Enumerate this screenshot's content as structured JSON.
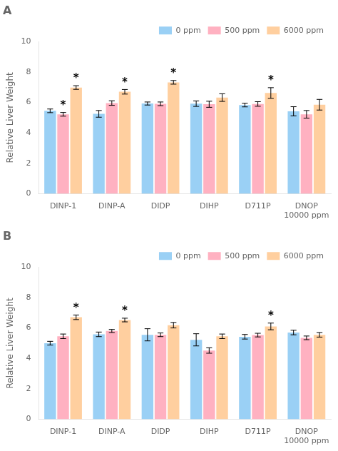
{
  "chart_data": [
    {
      "type": "bar",
      "title": "A",
      "categories": [
        "DINP-1",
        "DINP-A",
        "DIDP",
        "DIHP",
        "D711P",
        "DNOP\n10000 ppm"
      ],
      "series": [
        {
          "name": "0 ppm",
          "values": [
            5.45,
            5.25,
            5.93,
            5.92,
            5.83,
            5.42
          ],
          "errors": [
            0.12,
            0.22,
            0.1,
            0.18,
            0.12,
            0.3
          ]
        },
        {
          "name": "500 ppm",
          "values": [
            5.22,
            5.96,
            5.91,
            5.88,
            5.9,
            5.22
          ],
          "errors": [
            0.12,
            0.15,
            0.12,
            0.2,
            0.15,
            0.25
          ]
        },
        {
          "name": "6000 ppm",
          "values": [
            6.98,
            6.7,
            7.32,
            6.32,
            6.62,
            5.85
          ],
          "errors": [
            0.12,
            0.15,
            0.12,
            0.25,
            0.35,
            0.35
          ]
        }
      ],
      "annotations": [
        {
          "text": "*",
          "series": "500 ppm",
          "category": "DINP-1"
        },
        {
          "text": "*",
          "series": "6000 ppm",
          "category": "DINP-1"
        },
        {
          "text": "*",
          "series": "6000 ppm",
          "category": "DINP-A"
        },
        {
          "text": "*",
          "series": "6000 ppm",
          "category": "DIDP"
        },
        {
          "text": "*",
          "series": "6000 ppm",
          "category": "D711P"
        }
      ],
      "ylabel": "Relative Liver Weight",
      "ylim": [
        0,
        10
      ],
      "yticks": [
        0,
        2,
        4,
        6,
        8,
        10
      ],
      "grid": false,
      "legend": "upper right"
    },
    {
      "type": "bar",
      "title": "B",
      "categories": [
        "DINP-1",
        "DINP-A",
        "DIDP",
        "DIHP",
        "D711P",
        "DNOP\n10000 ppm"
      ],
      "series": [
        {
          "name": "0 ppm",
          "values": [
            5.0,
            5.58,
            5.55,
            5.22,
            5.42,
            5.7
          ],
          "errors": [
            0.12,
            0.15,
            0.4,
            0.4,
            0.15,
            0.15
          ]
        },
        {
          "name": "500 ppm",
          "values": [
            5.45,
            5.8,
            5.55,
            4.52,
            5.53,
            5.35
          ],
          "errors": [
            0.15,
            0.1,
            0.12,
            0.18,
            0.12,
            0.12
          ]
        },
        {
          "name": "6000 ppm",
          "values": [
            6.7,
            6.52,
            6.18,
            5.45,
            6.1,
            5.55
          ],
          "errors": [
            0.15,
            0.12,
            0.18,
            0.15,
            0.22,
            0.15
          ]
        }
      ],
      "annotations": [
        {
          "text": "*",
          "series": "6000 ppm",
          "category": "DINP-1"
        },
        {
          "text": "*",
          "series": "6000 ppm",
          "category": "DINP-A"
        },
        {
          "text": "*",
          "series": "6000 ppm",
          "category": "D711P"
        }
      ],
      "ylabel": "Relative Liver Weight",
      "ylim": [
        0,
        10
      ],
      "yticks": [
        0,
        2,
        4,
        6,
        8,
        10
      ],
      "grid": false,
      "legend": "upper right"
    }
  ]
}
